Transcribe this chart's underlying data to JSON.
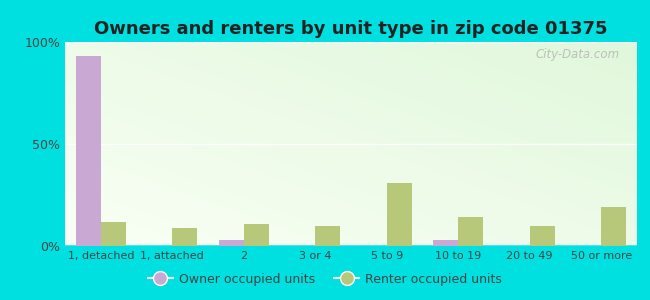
{
  "title": "Owners and renters by unit type in zip code 01375",
  "categories": [
    "1, detached",
    "1, attached",
    "2",
    "3 or 4",
    "5 to 9",
    "10 to 19",
    "20 to 49",
    "50 or more"
  ],
  "owner_values": [
    93,
    0,
    3,
    0,
    0,
    3,
    0,
    0
  ],
  "renter_values": [
    12,
    9,
    11,
    10,
    31,
    14,
    10,
    19
  ],
  "owner_color": "#c9a8d4",
  "renter_color": "#b8c87a",
  "background_outer": "#00e0e0",
  "title_fontsize": 13,
  "legend_owner": "Owner occupied units",
  "legend_renter": "Renter occupied units",
  "ylim": [
    0,
    100
  ],
  "yticks": [
    0,
    50,
    100
  ],
  "ytick_labels": [
    "0%",
    "50%",
    "100%"
  ],
  "bar_width": 0.35,
  "watermark": "City-Data.com"
}
